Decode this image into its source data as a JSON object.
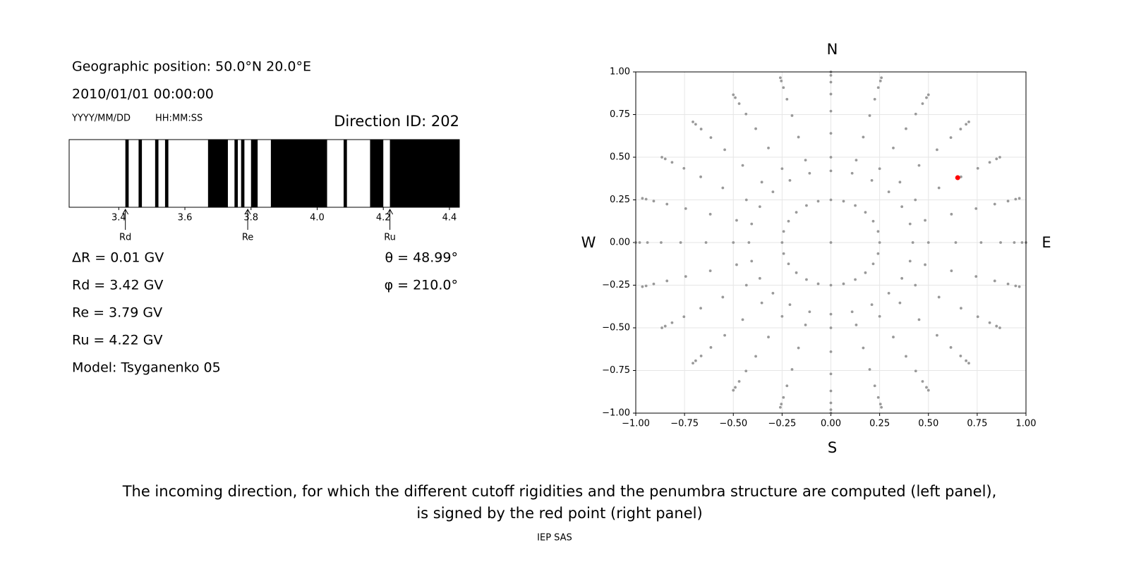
{
  "left_panel": {
    "position": "Geographic position: 50.0°N 20.0°E",
    "datetime": "2010/01/01 00:00:00",
    "date_format": "YYYY/MM/DD",
    "time_format": "HH:MM:SS",
    "readouts_left": [
      "ΔR = 0.01 GV",
      "Rd = 3.42 GV",
      "Re = 3.79 GV",
      "Ru = 4.22 GV",
      "Model: Tsyganenko 05"
    ],
    "readouts_right": [
      "θ = 48.99°",
      "φ = 210.0°"
    ]
  },
  "chart_data": [
    {
      "type": "penumbra",
      "title": "Direction ID: 202",
      "xlim": [
        3.25,
        4.43
      ],
      "xticks": [
        3.4,
        3.6,
        3.8,
        {
          "value": 4,
          "label": "4.0"
        },
        4.2,
        4.4
      ],
      "color": "#000000",
      "forbidden": [
        [
          3.42,
          3.43
        ],
        [
          3.46,
          3.47
        ],
        [
          3.51,
          3.52
        ],
        [
          3.54,
          3.55
        ],
        [
          3.67,
          3.73
        ],
        [
          3.75,
          3.76
        ],
        [
          3.77,
          3.78
        ],
        [
          3.8,
          3.82
        ],
        [
          3.86,
          4.03
        ],
        [
          4.08,
          4.09
        ],
        [
          4.16,
          4.2
        ],
        [
          4.22,
          4.43
        ]
      ],
      "markers": [
        {
          "label": "Rd",
          "value": 3.42
        },
        {
          "label": "Re",
          "value": 3.79
        },
        {
          "label": "Ru",
          "value": 4.22
        }
      ]
    },
    {
      "type": "scatter",
      "compass": {
        "top": "N",
        "bottom": "S",
        "left": "W",
        "right": "E"
      },
      "xlim": [
        -1,
        1
      ],
      "ylim": [
        -1,
        1
      ],
      "grid": true,
      "xticks": [
        {
          "value": -1,
          "label": "−1.00"
        },
        {
          "value": -0.75,
          "label": "−0.75"
        },
        {
          "value": -0.5,
          "label": "−0.50"
        },
        {
          "value": -0.25,
          "label": "−0.25"
        },
        {
          "value": 0,
          "label": "0.00"
        },
        0.25,
        {
          "value": 0.5,
          "label": "0.50"
        },
        0.75,
        {
          "value": 1,
          "label": "1.00"
        }
      ],
      "yticks": [
        {
          "value": -1,
          "label": "−1.00"
        },
        {
          "value": -0.75,
          "label": "−0.75"
        },
        {
          "value": -0.5,
          "label": "−0.50"
        },
        {
          "value": -0.25,
          "label": "−0.25"
        },
        {
          "value": 0,
          "label": "0.00"
        },
        0.25,
        {
          "value": 0.5,
          "label": "0.50"
        },
        0.75,
        {
          "value": 1,
          "label": "1.00"
        }
      ],
      "series": [
        {
          "color": "#999999",
          "x": [
            0,
            0.25,
            0.42,
            0.5,
            0.64,
            0.77,
            0.87,
            0.94,
            0.98,
            1,
            0.242,
            0.406,
            0.483,
            0.618,
            0.744,
            0.84,
            0.908,
            0.947,
            0.966,
            0.217,
            0.364,
            0.433,
            0.554,
            0.667,
            0.753,
            0.814,
            0.849,
            0.866,
            0.177,
            0.297,
            0.354,
            0.452,
            0.544,
            0.615,
            0.665,
            0.693,
            0.707,
            0.125,
            0.21,
            0.25,
            0.32,
            0.385,
            0.435,
            0.47,
            0.49,
            0.5,
            0.065,
            0.109,
            0.13,
            0.166,
            0.199,
            0.225,
            0.243,
            0.254,
            0.259,
            0,
            0,
            0,
            0,
            0,
            0,
            0,
            0,
            0,
            -0.065,
            -0.109,
            -0.13,
            -0.166,
            -0.199,
            -0.225,
            -0.243,
            -0.254,
            -0.259,
            -0.125,
            -0.21,
            -0.25,
            -0.32,
            -0.385,
            -0.435,
            -0.47,
            -0.49,
            -0.5,
            -0.177,
            -0.297,
            -0.354,
            -0.452,
            -0.544,
            -0.615,
            -0.665,
            -0.693,
            -0.707,
            -0.217,
            -0.364,
            -0.433,
            -0.554,
            -0.667,
            -0.753,
            -0.814,
            -0.849,
            -0.866,
            -0.242,
            -0.406,
            -0.483,
            -0.618,
            -0.744,
            -0.84,
            -0.908,
            -0.947,
            -0.966,
            -0.25,
            -0.42,
            -0.5,
            -0.64,
            -0.77,
            -0.87,
            -0.94,
            -0.98,
            -1,
            -0.242,
            -0.406,
            -0.483,
            -0.618,
            -0.744,
            -0.84,
            -0.908,
            -0.947,
            -0.966,
            -0.217,
            -0.364,
            -0.433,
            -0.554,
            -0.667,
            -0.753,
            -0.814,
            -0.849,
            -0.866,
            -0.177,
            -0.297,
            -0.354,
            -0.452,
            -0.544,
            -0.615,
            -0.665,
            -0.693,
            -0.707,
            -0.125,
            -0.21,
            -0.25,
            -0.32,
            -0.385,
            -0.435,
            -0.47,
            -0.49,
            -0.5,
            -0.065,
            -0.109,
            -0.13,
            -0.166,
            -0.199,
            -0.225,
            -0.243,
            -0.254,
            -0.259,
            0,
            0,
            0,
            0,
            0,
            0,
            0,
            0,
            0,
            0.065,
            0.109,
            0.13,
            0.166,
            0.199,
            0.225,
            0.243,
            0.254,
            0.259,
            0.125,
            0.21,
            0.25,
            0.32,
            0.385,
            0.435,
            0.47,
            0.49,
            0.5,
            0.177,
            0.297,
            0.354,
            0.452,
            0.544,
            0.615,
            0.665,
            0.693,
            0.707,
            0.217,
            0.364,
            0.433,
            0.554,
            0.667,
            0.753,
            0.814,
            0.849,
            0.866,
            0.242,
            0.406,
            0.483,
            0.618,
            0.744,
            0.84,
            0.908,
            0.947,
            0.966
          ],
          "y": [
            0,
            0,
            0,
            0,
            0,
            0,
            0,
            0,
            0,
            0,
            0.065,
            0.109,
            0.13,
            0.166,
            0.199,
            0.225,
            0.243,
            0.254,
            0.259,
            0.125,
            0.21,
            0.25,
            0.32,
            0.385,
            0.435,
            0.47,
            0.49,
            0.5,
            0.177,
            0.297,
            0.354,
            0.452,
            0.544,
            0.615,
            0.665,
            0.693,
            0.707,
            0.217,
            0.364,
            0.433,
            0.554,
            0.667,
            0.753,
            0.814,
            0.849,
            0.866,
            0.242,
            0.406,
            0.483,
            0.618,
            0.744,
            0.84,
            0.908,
            0.947,
            0.966,
            0.25,
            0.42,
            0.5,
            0.64,
            0.77,
            0.87,
            0.94,
            0.98,
            1,
            0.242,
            0.406,
            0.483,
            0.618,
            0.744,
            0.84,
            0.908,
            0.947,
            0.966,
            0.217,
            0.364,
            0.433,
            0.554,
            0.667,
            0.753,
            0.814,
            0.849,
            0.866,
            0.177,
            0.297,
            0.354,
            0.452,
            0.544,
            0.615,
            0.665,
            0.693,
            0.707,
            0.125,
            0.21,
            0.25,
            0.32,
            0.385,
            0.435,
            0.47,
            0.49,
            0.5,
            0.065,
            0.109,
            0.13,
            0.166,
            0.199,
            0.225,
            0.243,
            0.254,
            0.259,
            0,
            0,
            0,
            0,
            0,
            0,
            0,
            0,
            0,
            -0.065,
            -0.109,
            -0.13,
            -0.166,
            -0.199,
            -0.225,
            -0.243,
            -0.254,
            -0.259,
            -0.125,
            -0.21,
            -0.25,
            -0.32,
            -0.385,
            -0.435,
            -0.47,
            -0.49,
            -0.5,
            -0.177,
            -0.297,
            -0.354,
            -0.452,
            -0.544,
            -0.615,
            -0.665,
            -0.693,
            -0.707,
            -0.217,
            -0.364,
            -0.433,
            -0.554,
            -0.667,
            -0.753,
            -0.814,
            -0.849,
            -0.866,
            -0.242,
            -0.406,
            -0.483,
            -0.618,
            -0.744,
            -0.84,
            -0.908,
            -0.947,
            -0.966,
            -0.25,
            -0.42,
            -0.5,
            -0.64,
            -0.77,
            -0.87,
            -0.94,
            -0.98,
            -1,
            -0.242,
            -0.406,
            -0.483,
            -0.618,
            -0.744,
            -0.84,
            -0.908,
            -0.947,
            -0.966,
            -0.217,
            -0.364,
            -0.433,
            -0.554,
            -0.667,
            -0.753,
            -0.814,
            -0.849,
            -0.866,
            -0.177,
            -0.297,
            -0.354,
            -0.452,
            -0.544,
            -0.615,
            -0.665,
            -0.693,
            -0.707,
            -0.125,
            -0.21,
            -0.25,
            -0.32,
            -0.385,
            -0.435,
            -0.47,
            -0.49,
            -0.5,
            -0.065,
            -0.109,
            -0.13,
            -0.166,
            -0.199,
            -0.225,
            -0.243,
            -0.254,
            -0.259
          ]
        },
        {
          "color": "#ff0000",
          "x": [
            0.65
          ],
          "y": [
            0.38
          ]
        }
      ]
    }
  ],
  "caption": [
    "The incoming direction, for which the different cutoff rigidities and the penumbra structure are computed (left panel),",
    "is signed by the red point (right panel)"
  ],
  "footer": "IEP SAS"
}
